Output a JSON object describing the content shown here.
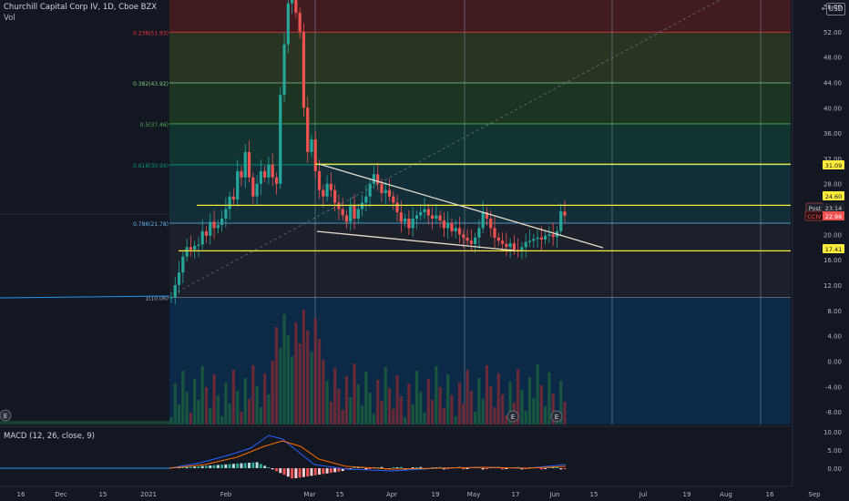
{
  "header": {
    "symbol_line": "Churchill Capital Corp IV, 1D, Cboe BZX",
    "volume_label": "Vol",
    "currency_button": "USD"
  },
  "macd": {
    "label": "MACD (12, 26, close, 9)",
    "ticks": [
      "10.00",
      "5.00",
      "0.00"
    ]
  },
  "colors": {
    "background": "#131722",
    "up": "#26a69a",
    "down": "#ef5350",
    "fib_line": "#ffeb3b",
    "trend_line": "#e6dcc8"
  },
  "price_axis": {
    "ticks": [
      "56.00",
      "52.00",
      "48.00",
      "44.00",
      "40.00",
      "36.00",
      "32.00",
      "28.00",
      "24.00",
      "20.00",
      "16.00",
      "12.00",
      "8.00",
      "4.00",
      "0.00",
      "-4.00",
      "-8.00"
    ]
  },
  "time_axis": {
    "ticks": [
      "16",
      "Dec",
      "15",
      "2021",
      "Feb",
      "Mar",
      "15",
      "Apr",
      "19",
      "May",
      "17",
      "Jun",
      "15",
      "Jul",
      "19",
      "Aug",
      "16",
      "Sep"
    ]
  },
  "fib_levels": [
    {
      "label": "0.236(51.93)",
      "price": 51.93
    },
    {
      "label": "0.382(43.92)",
      "price": 43.92
    },
    {
      "label": "0.5(37.46)",
      "price": 37.46
    },
    {
      "label": "0.618(30.99)",
      "price": 30.99
    },
    {
      "label": "0.786(21.78)",
      "price": 21.78
    },
    {
      "label": "1(10.06)",
      "price": 10.06
    }
  ],
  "price_labels": [
    {
      "text": "31.09",
      "type": "level"
    },
    {
      "text": "24.60",
      "type": "level"
    },
    {
      "text": "Post",
      "type": "post-tag"
    },
    {
      "text": "23.14",
      "type": "post"
    },
    {
      "text": "CCIV",
      "type": "ticker-tag"
    },
    {
      "text": "22.96",
      "type": "last"
    },
    {
      "text": "17.41",
      "type": "level"
    }
  ],
  "event_markers": [
    "E",
    "E",
    "E"
  ]
}
